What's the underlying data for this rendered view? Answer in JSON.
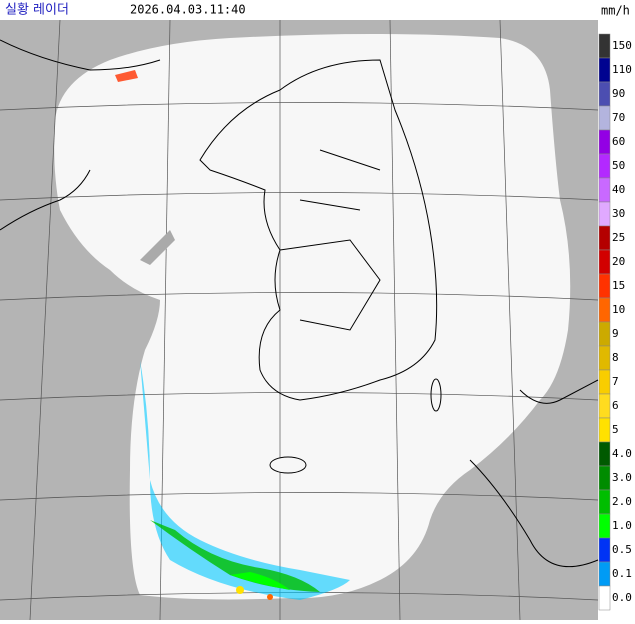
{
  "header": {
    "title": "실황 레이더",
    "timestamp": "2026.04.03.11:40",
    "unit": "mm/h"
  },
  "legend": [
    {
      "label": "150",
      "color": "#333333"
    },
    {
      "label": "110",
      "color": "#000390"
    },
    {
      "label": "90",
      "color": "#4c4eb1"
    },
    {
      "label": "70",
      "color": "#b3b4de"
    },
    {
      "label": "60",
      "color": "#9300e4"
    },
    {
      "label": "50",
      "color": "#b329ff"
    },
    {
      "label": "40",
      "color": "#c969ff"
    },
    {
      "label": "30",
      "color": "#e0a9ff"
    },
    {
      "label": "25",
      "color": "#b40000"
    },
    {
      "label": "20",
      "color": "#d20000"
    },
    {
      "label": "15",
      "color": "#ff3200"
    },
    {
      "label": "10",
      "color": "#ff6600"
    },
    {
      "label": "9",
      "color": "#ccaa00"
    },
    {
      "label": "8",
      "color": "#e0b900"
    },
    {
      "label": "7",
      "color": "#f9cd00"
    },
    {
      "label": "6",
      "color": "#ffdc1f"
    },
    {
      "label": "5",
      "color": "#ffe100"
    },
    {
      "label": "4.0",
      "color": "#005a00"
    },
    {
      "label": "3.0",
      "color": "#008c00"
    },
    {
      "label": "2.0",
      "color": "#00be00"
    },
    {
      "label": "1.0",
      "color": "#00ff00"
    },
    {
      "label": "0.5",
      "color": "#0033f5"
    },
    {
      "label": "0.1",
      "color": "#009bf5"
    },
    {
      "label": "0.0",
      "color": "#ffffff"
    }
  ]
}
